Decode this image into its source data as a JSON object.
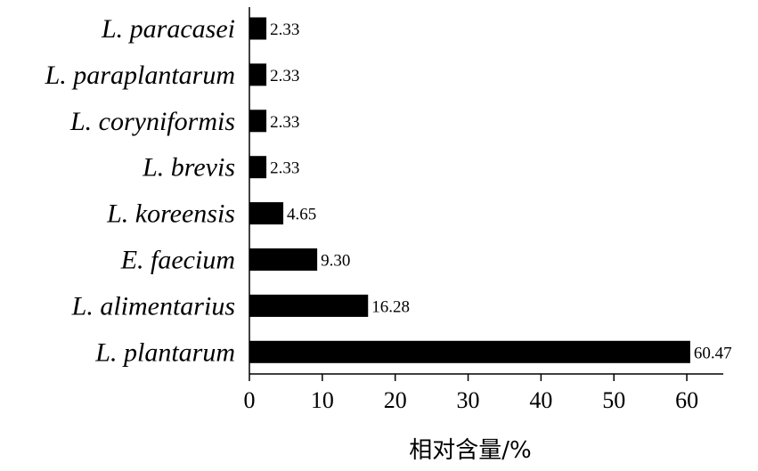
{
  "chart_data": {
    "type": "bar",
    "orientation": "horizontal",
    "categories": [
      "L. paracasei",
      "L. paraplantarum",
      "L. coryniformis",
      "L. brevis",
      "L. koreensis",
      "E. faecium",
      "L. alimentarius",
      "L. plantarum"
    ],
    "values": [
      2.33,
      2.33,
      2.33,
      2.33,
      4.65,
      9.3,
      16.28,
      60.47
    ],
    "value_labels": [
      "2.33",
      "2.33",
      "2.33",
      "2.33",
      "4.65",
      "9.30",
      "16.28",
      "60.47"
    ],
    "xlabel": "相对含量/%",
    "xlim": [
      0,
      65
    ],
    "xticks": [
      0,
      10,
      20,
      30,
      40,
      50,
      60
    ],
    "bar_color": "#000000",
    "grid": false,
    "legend": "none"
  }
}
